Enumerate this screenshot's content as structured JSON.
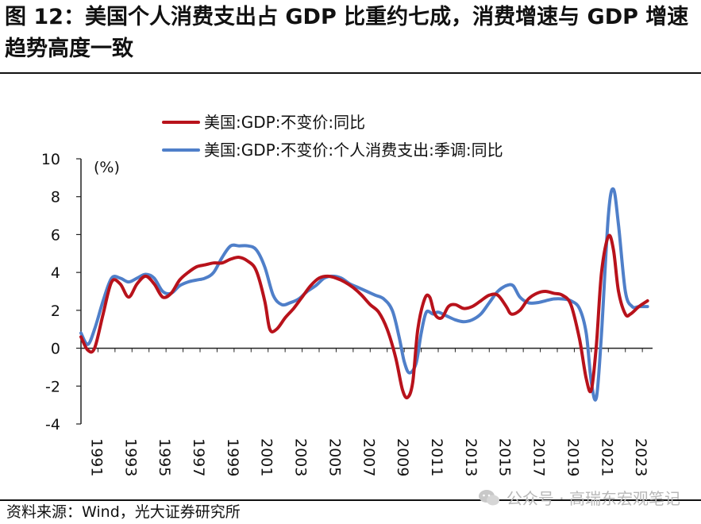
{
  "header": {
    "title": "图 12：美国个人消费支出占 GDP 比重约七成，消费增速与 GDP 增速趋势高度一致"
  },
  "footer": {
    "source": "资料来源：Wind，光大证券研究所",
    "watermark": "公众号 · 高瑞东宏观笔记"
  },
  "colors": {
    "gdp": "#b8121b",
    "pce": "#4f7fc9",
    "axis": "#222222"
  },
  "chart_data": {
    "type": "line",
    "title": "",
    "xlabel": "",
    "ylabel": "(%)",
    "ylim": [
      -4,
      10
    ],
    "yticks": [
      -4,
      -2,
      0,
      2,
      4,
      6,
      8,
      10
    ],
    "xlim": [
      1990,
      2023.6
    ],
    "xticks": [
      "1991",
      "1993",
      "1995",
      "1997",
      "1999",
      "2001",
      "2003",
      "2005",
      "2007",
      "2009",
      "2011",
      "2013",
      "2015",
      "2017",
      "2019",
      "2021",
      "2023"
    ],
    "legend_position": "top",
    "series": [
      {
        "name": "美国:GDP:不变价:同比",
        "color": "#b8121b",
        "x": [
          1990.0,
          1990.4,
          1990.8,
          1991.3,
          1991.8,
          1992.3,
          1992.8,
          1993.3,
          1993.8,
          1994.3,
          1994.8,
          1995.3,
          1995.8,
          1996.3,
          1996.8,
          1997.3,
          1997.8,
          1998.3,
          1998.8,
          1999.3,
          1999.8,
          2000.3,
          2000.8,
          2001.1,
          2001.5,
          2002.0,
          2002.5,
          2003.0,
          2003.5,
          2004.0,
          2004.5,
          2005.0,
          2005.5,
          2006.0,
          2006.5,
          2007.0,
          2007.5,
          2008.0,
          2008.5,
          2008.9,
          2009.2,
          2009.5,
          2009.8,
          2010.2,
          2010.5,
          2010.8,
          2011.2,
          2011.6,
          2012.0,
          2012.5,
          2013.0,
          2013.5,
          2014.0,
          2014.5,
          2015.0,
          2015.3,
          2015.8,
          2016.3,
          2016.8,
          2017.3,
          2017.8,
          2018.3,
          2018.8,
          2019.3,
          2019.7,
          2020.0,
          2020.3,
          2020.6,
          2021.0,
          2021.3,
          2021.6,
          2022.0,
          2022.3,
          2022.8,
          2023.3
        ],
        "values": [
          0.6,
          -0.1,
          0.0,
          1.8,
          3.5,
          3.4,
          2.7,
          3.4,
          3.8,
          3.4,
          2.7,
          2.9,
          3.6,
          4.0,
          4.3,
          4.4,
          4.5,
          4.5,
          4.7,
          4.8,
          4.6,
          4.1,
          2.5,
          1.0,
          1.0,
          1.6,
          2.1,
          2.7,
          3.3,
          3.7,
          3.8,
          3.7,
          3.5,
          3.2,
          2.8,
          2.3,
          1.9,
          1.0,
          -0.5,
          -2.2,
          -2.6,
          -1.8,
          1.0,
          2.6,
          2.7,
          1.8,
          1.6,
          2.2,
          2.3,
          2.1,
          2.2,
          2.5,
          2.8,
          2.8,
          2.2,
          1.8,
          2.0,
          2.6,
          2.9,
          3.0,
          2.9,
          2.8,
          2.3,
          0.5,
          -1.6,
          -2.2,
          0.2,
          4.0,
          5.9,
          5.2,
          3.0,
          1.8,
          1.8,
          2.2,
          2.5
        ]
      },
      {
        "name": "美国:GDP:不变价:个人消费支出:季调:同比",
        "color": "#4f7fc9",
        "x": [
          1990.0,
          1990.4,
          1990.8,
          1991.3,
          1991.8,
          1992.3,
          1992.8,
          1993.3,
          1993.8,
          1994.3,
          1994.8,
          1995.3,
          1995.8,
          1996.3,
          1996.8,
          1997.3,
          1997.8,
          1998.3,
          1998.8,
          1999.3,
          1999.8,
          2000.3,
          2000.8,
          2001.3,
          2001.8,
          2002.3,
          2002.8,
          2003.3,
          2003.8,
          2004.3,
          2004.8,
          2005.3,
          2005.8,
          2006.3,
          2006.8,
          2007.3,
          2007.8,
          2008.3,
          2008.7,
          2009.0,
          2009.3,
          2009.7,
          2010.0,
          2010.3,
          2010.7,
          2011.0,
          2011.5,
          2012.0,
          2012.5,
          2013.0,
          2013.5,
          2014.0,
          2014.5,
          2015.0,
          2015.4,
          2015.8,
          2016.3,
          2016.8,
          2017.3,
          2017.8,
          2018.3,
          2018.8,
          2019.3,
          2019.7,
          2020.0,
          2020.3,
          2020.6,
          2021.0,
          2021.3,
          2021.6,
          2022.0,
          2022.4,
          2022.8,
          2023.3
        ],
        "values": [
          0.8,
          0.2,
          1.0,
          2.5,
          3.7,
          3.7,
          3.5,
          3.7,
          3.9,
          3.7,
          3.0,
          2.9,
          3.3,
          3.5,
          3.6,
          3.7,
          4.0,
          4.8,
          5.4,
          5.4,
          5.4,
          5.2,
          4.3,
          2.8,
          2.3,
          2.4,
          2.6,
          3.0,
          3.3,
          3.7,
          3.8,
          3.7,
          3.4,
          3.2,
          3.0,
          2.8,
          2.6,
          2.0,
          0.6,
          -0.7,
          -1.3,
          -0.8,
          0.8,
          1.9,
          1.8,
          1.9,
          1.7,
          1.5,
          1.4,
          1.5,
          1.8,
          2.4,
          3.0,
          3.3,
          3.3,
          2.7,
          2.4,
          2.4,
          2.5,
          2.6,
          2.6,
          2.5,
          2.1,
          0.8,
          -1.8,
          -2.6,
          0.8,
          7.0,
          8.4,
          6.5,
          3.0,
          2.2,
          2.2,
          2.2
        ]
      }
    ]
  }
}
